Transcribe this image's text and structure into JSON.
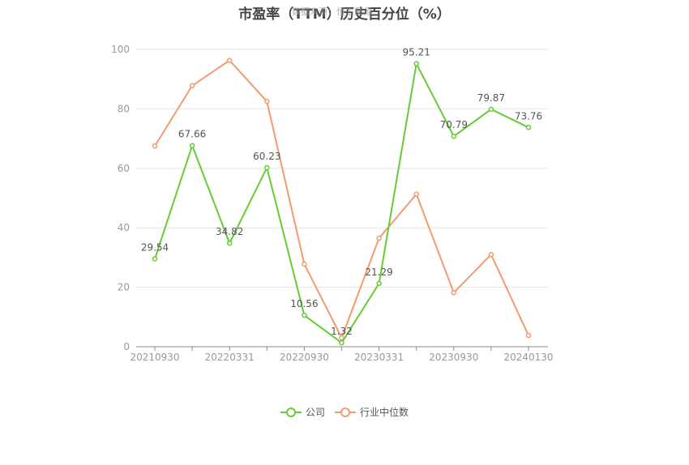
{
  "watermark": "数据来源：恒生聚源",
  "chart_data": {
    "type": "line",
    "title": "市盈率（TTM）历史百分位（%）",
    "xlabel": "",
    "ylabel": "",
    "ylim": [
      0,
      100
    ],
    "yticks": [
      0,
      20,
      40,
      60,
      80,
      100
    ],
    "grid": true,
    "legend_position": "bottom",
    "x": [
      "20210930",
      "20211231",
      "20220331",
      "20220630",
      "20220930",
      "20221230",
      "20230331",
      "20230630",
      "20230930",
      "20231229",
      "20240130"
    ],
    "xtick_labels": [
      "20210930",
      "20220331",
      "20220930",
      "20230331",
      "20230930",
      "20240130"
    ],
    "series": [
      {
        "name": "公司",
        "color": "#66cc33",
        "values": [
          29.54,
          67.66,
          34.82,
          60.23,
          10.56,
          1.32,
          21.29,
          95.21,
          70.79,
          79.87,
          73.76
        ],
        "labels": [
          "29.54",
          "67.66",
          "34.82",
          "60.23",
          "10.56",
          "1.32",
          "21.29",
          "95.21",
          "70.79",
          "79.87",
          "73.76"
        ]
      },
      {
        "name": "行业中位数",
        "color": "#f59a6e",
        "values": [
          67.5,
          87.8,
          96.3,
          82.5,
          27.8,
          3.0,
          36.5,
          51.3,
          18.2,
          31.0,
          3.8
        ]
      }
    ]
  }
}
